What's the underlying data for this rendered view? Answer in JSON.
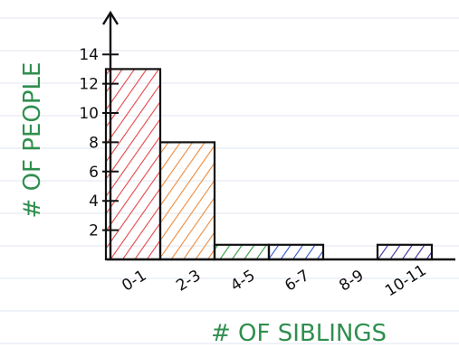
{
  "chart_data": {
    "type": "bar",
    "title": "",
    "xlabel": "# OF SIBLINGS",
    "ylabel": "# OF PEOPLE",
    "categories": [
      "0-1",
      "2-3",
      "4-5",
      "6-7",
      "8-9",
      "10-11"
    ],
    "values": [
      13,
      8,
      1,
      1,
      0,
      1
    ],
    "ylim": [
      0,
      15
    ],
    "yticks": [
      "2",
      "4",
      "6",
      "8",
      "10",
      "12",
      "14"
    ],
    "grid": false,
    "legend": "none",
    "bar_colors": [
      "#e4454a",
      "#ee8a3a",
      "#2f9a3e",
      "#2f55c8",
      "#ffffff",
      "#3a2ba6"
    ],
    "label_color": "#2f8f4e",
    "line_color": "#111111",
    "paper_rule_color": "#dfe6ef"
  }
}
